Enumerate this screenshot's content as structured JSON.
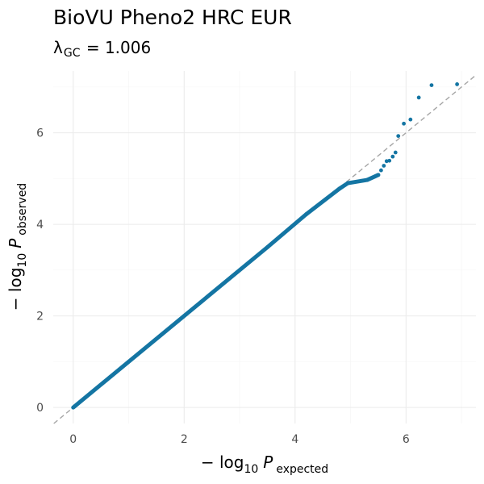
{
  "title": "BioVU Pheno2 HRC EUR",
  "subtitle": {
    "lambda_symbol": "λ",
    "lambda_subscript": "GC",
    "lambda_equals": " = ",
    "lambda_value": "1.006"
  },
  "axes": {
    "x": {
      "label_prefix": "− log",
      "label_log_base": "10",
      "label_var": "P",
      "label_subscript": "expected",
      "ticks": [
        0,
        2,
        4,
        6
      ],
      "range": [
        -0.36,
        7.26
      ]
    },
    "y": {
      "label_prefix": "− log",
      "label_log_base": "10",
      "label_var": "P",
      "label_subscript": "observed",
      "ticks": [
        0,
        2,
        4,
        6
      ],
      "range": [
        -0.35,
        7.35
      ]
    }
  },
  "colors": {
    "points": "#1475a3",
    "reference_line": "#a6a6a6",
    "grid_major": "#ebebeb",
    "grid_minor": "#f4f4f4",
    "tick_text": "#4d4d4d"
  },
  "chart_data": {
    "type": "scatter",
    "kind": "qq-plot",
    "title": "BioVU Pheno2 HRC EUR",
    "subtitle": "λGC = 1.006",
    "xlabel": "− log10 P expected",
    "ylabel": "− log10 P observed",
    "xlim": [
      -0.36,
      7.26
    ],
    "ylim": [
      -0.35,
      7.35
    ],
    "grid": true,
    "reference_line": {
      "slope": 1,
      "intercept": 0,
      "style": "dashed"
    },
    "dense_segments": [
      {
        "x": [
          0.0,
          3.5
        ],
        "y": [
          0.0,
          3.5
        ]
      },
      {
        "x": [
          3.5,
          4.2
        ],
        "y": [
          3.5,
          4.22
        ]
      },
      {
        "x": [
          4.2,
          4.8
        ],
        "y": [
          4.22,
          4.78
        ]
      },
      {
        "x": [
          4.8,
          4.95
        ],
        "y": [
          4.78,
          4.9
        ]
      },
      {
        "x": [
          4.95,
          5.3
        ],
        "y": [
          4.9,
          4.97
        ]
      },
      {
        "x": [
          5.3,
          5.5
        ],
        "y": [
          4.97,
          5.08
        ]
      }
    ],
    "points": [
      {
        "x": 5.55,
        "y": 5.18
      },
      {
        "x": 5.6,
        "y": 5.28
      },
      {
        "x": 5.65,
        "y": 5.38
      },
      {
        "x": 5.7,
        "y": 5.39
      },
      {
        "x": 5.76,
        "y": 5.48
      },
      {
        "x": 5.81,
        "y": 5.57
      },
      {
        "x": 5.86,
        "y": 5.93
      },
      {
        "x": 5.96,
        "y": 6.2
      },
      {
        "x": 6.08,
        "y": 6.29
      },
      {
        "x": 6.23,
        "y": 6.77
      },
      {
        "x": 6.46,
        "y": 7.04
      },
      {
        "x": 6.92,
        "y": 7.06
      }
    ]
  }
}
